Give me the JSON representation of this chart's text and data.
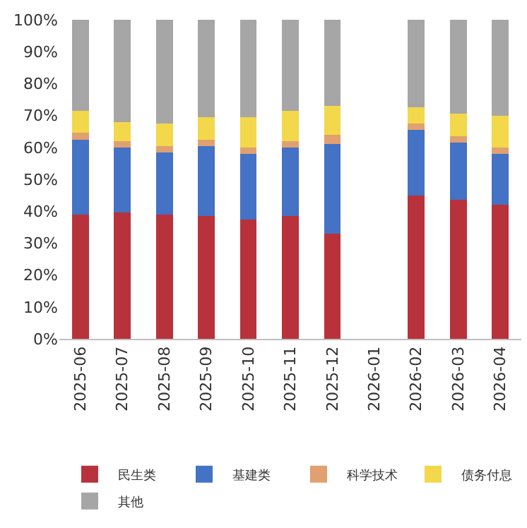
{
  "chart_data": {
    "type": "bar",
    "stacked": true,
    "categories": [
      "2025-06",
      "2025-07",
      "2025-08",
      "2025-09",
      "2025-10",
      "2025-11",
      "2025-12",
      "2026-01",
      "2026-02",
      "2026-03",
      "2026-04"
    ],
    "series": [
      {
        "name": "民生类",
        "color": "#b8323c",
        "values": [
          39,
          39.5,
          39,
          38.5,
          37.5,
          38.5,
          33,
          null,
          45,
          43.5,
          42
        ]
      },
      {
        "name": "基建类",
        "color": "#4472c4",
        "values": [
          23.5,
          20.5,
          19.5,
          22,
          20.5,
          21.5,
          28,
          null,
          20.5,
          18,
          16
        ]
      },
      {
        "name": "科学技术",
        "color": "#e0a070",
        "values": [
          2,
          2,
          2,
          2,
          2,
          2,
          3,
          null,
          2,
          2,
          2
        ]
      },
      {
        "name": "债务付息",
        "color": "#f2d84a",
        "values": [
          7,
          6,
          7,
          7,
          9.5,
          9.5,
          9,
          null,
          5,
          7,
          10
        ]
      },
      {
        "name": "其他",
        "color": "#a6a6a6",
        "values": [
          28.5,
          32,
          32.5,
          30.5,
          30.5,
          28.5,
          27,
          null,
          27.5,
          29.5,
          30
        ]
      }
    ],
    "ylim": [
      0,
      100
    ],
    "yticks": [
      {
        "value": 0,
        "label": "0%"
      },
      {
        "value": 10,
        "label": "10%"
      },
      {
        "value": 20,
        "label": "20%"
      },
      {
        "value": 30,
        "label": "30%"
      },
      {
        "value": 40,
        "label": "40%"
      },
      {
        "value": 50,
        "label": "50%"
      },
      {
        "value": 60,
        "label": "60%"
      },
      {
        "value": 70,
        "label": "70%"
      },
      {
        "value": 80,
        "label": "80%"
      },
      {
        "value": 90,
        "label": "90%"
      },
      {
        "value": 100,
        "label": "100%"
      }
    ],
    "legend": "bottom"
  }
}
